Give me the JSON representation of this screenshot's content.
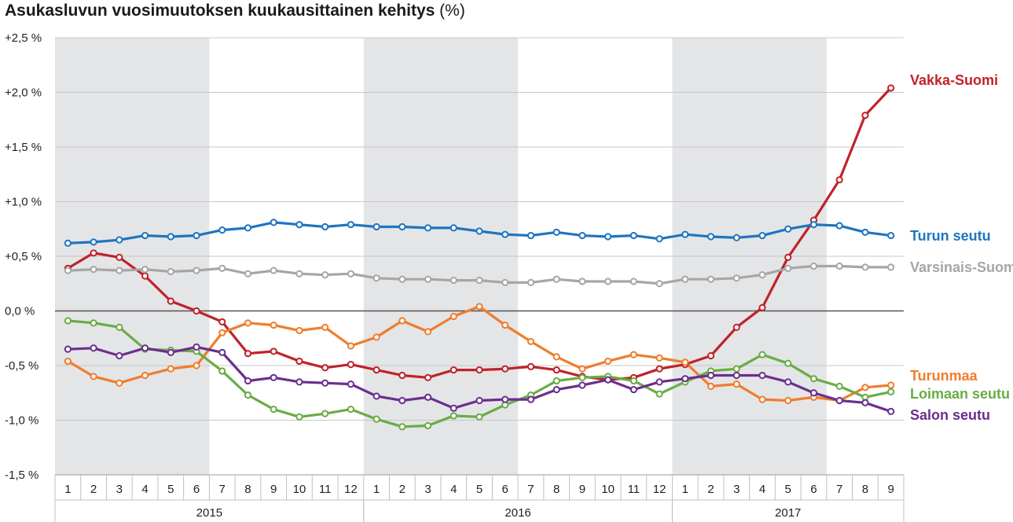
{
  "title": {
    "main": "Asukasluvun vuosimuutoksen kuukausittainen kehitys",
    "unit": "(%)"
  },
  "chart_data": {
    "type": "line",
    "title": "Asukasluvun vuosimuutoksen kuukausittainen kehitys (%)",
    "xlabel": "",
    "ylabel": "",
    "ylim": [
      -1.5,
      2.5
    ],
    "yticks": [
      2.5,
      2.0,
      1.5,
      1.0,
      0.5,
      0.0,
      -0.5,
      -1.0,
      -1.5
    ],
    "ytick_labels": [
      "+2,5 %",
      "+2,0 %",
      "+1,5 %",
      "+1,0 %",
      "+0,5 %",
      "0,0 %",
      "-0,5 %",
      "-1,0 %",
      "-1,5 %"
    ],
    "grid": true,
    "shaded_years": [
      "2015",
      "2016",
      "2017"
    ],
    "years": [
      {
        "label": "2015",
        "months": [
          "1",
          "2",
          "3",
          "4",
          "5",
          "6",
          "7",
          "8",
          "9",
          "10",
          "11",
          "12"
        ]
      },
      {
        "label": "2016",
        "months": [
          "1",
          "2",
          "3",
          "4",
          "5",
          "6",
          "7",
          "8",
          "9",
          "10",
          "11",
          "12"
        ]
      },
      {
        "label": "2017",
        "months": [
          "1",
          "2",
          "3",
          "4",
          "5",
          "6",
          "7",
          "8",
          "9"
        ]
      }
    ],
    "legend": "line-end labels, right",
    "series": [
      {
        "name": "Vakka-Suomi",
        "color": "#c0222a",
        "values": [
          0.39,
          0.53,
          0.49,
          0.32,
          0.09,
          0.0,
          -0.1,
          -0.39,
          -0.37,
          -0.46,
          -0.52,
          -0.49,
          -0.54,
          -0.59,
          -0.61,
          -0.54,
          -0.54,
          -0.53,
          -0.51,
          -0.54,
          -0.6,
          -0.63,
          -0.61,
          -0.53,
          -0.49,
          -0.41,
          -0.15,
          0.03,
          0.49,
          0.83,
          1.2,
          1.79,
          2.04
        ]
      },
      {
        "name": "Turun seutu",
        "color": "#1f75c0",
        "values": [
          0.62,
          0.63,
          0.65,
          0.69,
          0.68,
          0.69,
          0.74,
          0.76,
          0.81,
          0.79,
          0.77,
          0.79,
          0.77,
          0.77,
          0.76,
          0.76,
          0.73,
          0.7,
          0.69,
          0.72,
          0.69,
          0.68,
          0.69,
          0.66,
          0.7,
          0.68,
          0.67,
          0.69,
          0.75,
          0.79,
          0.78,
          0.72,
          0.69
        ]
      },
      {
        "name": "Varsinais-Suomi",
        "color": "#a6a6a6",
        "values": [
          0.37,
          0.38,
          0.37,
          0.38,
          0.36,
          0.37,
          0.39,
          0.34,
          0.37,
          0.34,
          0.33,
          0.34,
          0.3,
          0.29,
          0.29,
          0.28,
          0.28,
          0.26,
          0.26,
          0.29,
          0.27,
          0.27,
          0.27,
          0.25,
          0.29,
          0.29,
          0.3,
          0.33,
          0.39,
          0.41,
          0.41,
          0.4,
          0.4
        ]
      },
      {
        "name": "Turunmaa",
        "color": "#ef7d2b",
        "values": [
          -0.46,
          -0.6,
          -0.66,
          -0.59,
          -0.53,
          -0.5,
          -0.2,
          -0.11,
          -0.13,
          -0.18,
          -0.15,
          -0.32,
          -0.24,
          -0.09,
          -0.19,
          -0.05,
          0.04,
          -0.13,
          -0.28,
          -0.42,
          -0.53,
          -0.46,
          -0.4,
          -0.43,
          -0.47,
          -0.69,
          -0.67,
          -0.81,
          -0.82,
          -0.79,
          -0.82,
          -0.7,
          -0.68
        ]
      },
      {
        "name": "Loimaan seutu",
        "color": "#6aac45",
        "values": [
          -0.09,
          -0.11,
          -0.15,
          -0.35,
          -0.36,
          -0.37,
          -0.55,
          -0.77,
          -0.9,
          -0.97,
          -0.94,
          -0.9,
          -0.99,
          -1.06,
          -1.05,
          -0.96,
          -0.97,
          -0.86,
          -0.77,
          -0.64,
          -0.61,
          -0.6,
          -0.64,
          -0.76,
          -0.65,
          -0.55,
          -0.53,
          -0.4,
          -0.48,
          -0.62,
          -0.69,
          -0.79,
          -0.74
        ]
      },
      {
        "name": "Salon seutu",
        "color": "#6b2e8e",
        "values": [
          -0.35,
          -0.34,
          -0.41,
          -0.34,
          -0.38,
          -0.33,
          -0.38,
          -0.64,
          -0.61,
          -0.65,
          -0.66,
          -0.67,
          -0.78,
          -0.82,
          -0.79,
          -0.89,
          -0.82,
          -0.81,
          -0.81,
          -0.72,
          -0.68,
          -0.63,
          -0.72,
          -0.65,
          -0.62,
          -0.59,
          -0.59,
          -0.59,
          -0.65,
          -0.75,
          -0.82,
          -0.84,
          -0.92
        ]
      }
    ]
  }
}
